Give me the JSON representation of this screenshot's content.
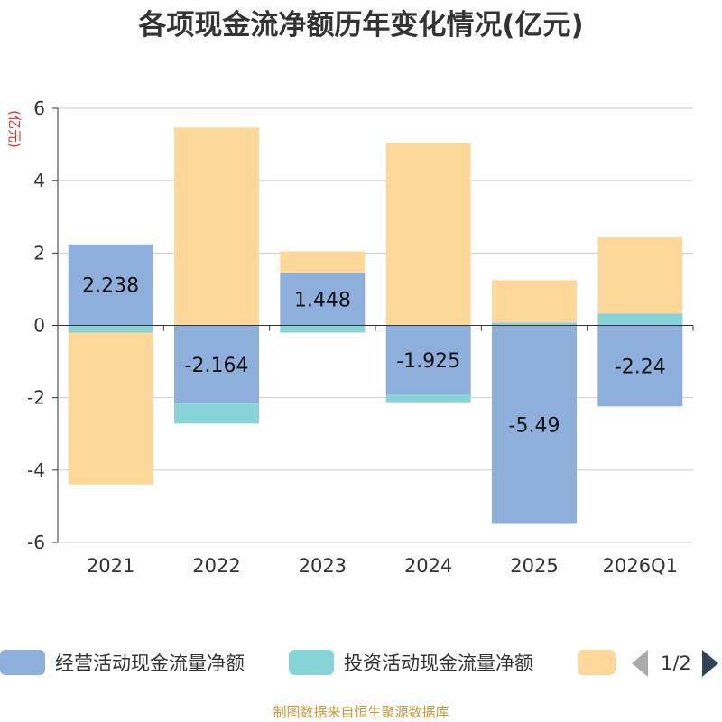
{
  "title": "各项现金流净额历年变化情况(亿元)",
  "source": "制图数据来自恒生聚源数据库",
  "legend": {
    "items": [
      {
        "label": "经营活动现金流量净额",
        "color": "#8eaedb"
      },
      {
        "label": "投资活动现金流量净额",
        "color": "#86d4d8"
      },
      {
        "label": "",
        "color": "#fed898"
      }
    ],
    "page": "1/2"
  },
  "chart_data": {
    "type": "bar",
    "stacked": true,
    "ylabel": "(亿元)",
    "ylim": [
      -6,
      6
    ],
    "yticks": [
      6,
      4,
      2,
      0,
      -2,
      -4,
      -6
    ],
    "grid": true,
    "categories": [
      "2021",
      "2022",
      "2023",
      "2024",
      "2025",
      "2026Q1"
    ],
    "series": [
      {
        "name": "经营活动现金流量净额",
        "color": "#8eaedb",
        "values": [
          2.238,
          -2.164,
          1.448,
          -1.925,
          -5.49,
          -2.24
        ],
        "labels": [
          "2.238",
          "-2.164",
          "1.448",
          "-1.925",
          "-5.49",
          "-2.24"
        ]
      },
      {
        "name": "投资活动现金流量净额",
        "color": "#86d4d8",
        "values": [
          -0.2,
          -0.55,
          -0.2,
          -0.2,
          0.08,
          0.33
        ]
      },
      {
        "color": "#fed898",
        "values": [
          -4.2,
          5.47,
          0.6,
          5.03,
          1.17,
          2.1
        ]
      }
    ]
  }
}
